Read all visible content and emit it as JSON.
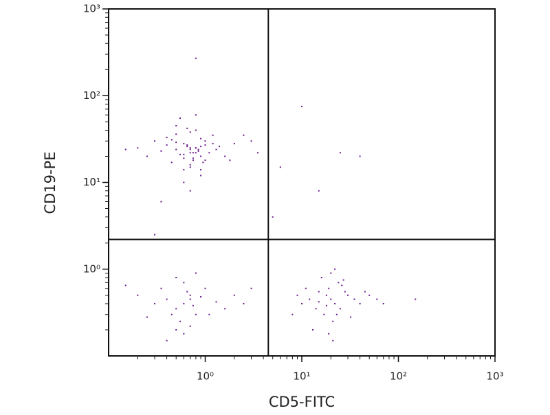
{
  "chart_data": {
    "type": "scatter",
    "x_label": "CD5-FITC",
    "y_label": "CD19-PE",
    "xscale": "log",
    "yscale": "log",
    "xlim": [
      0.1,
      1000
    ],
    "ylim": [
      0.1,
      1000
    ],
    "xticks": [
      {
        "value": 1,
        "label": "10⁰"
      },
      {
        "value": 10,
        "label": "10¹"
      },
      {
        "value": 100,
        "label": "10²"
      },
      {
        "value": 1000,
        "label": "10³"
      }
    ],
    "yticks": [
      {
        "value": 1,
        "label": "10⁰"
      },
      {
        "value": 10,
        "label": "10¹"
      },
      {
        "value": 100,
        "label": "10²"
      },
      {
        "value": 1000,
        "label": "10³"
      }
    ],
    "minor_xticks": [
      0.2,
      0.3,
      0.4,
      0.5,
      0.6,
      0.7,
      0.8,
      0.9,
      2,
      3,
      4,
      5,
      6,
      7,
      8,
      9,
      20,
      30,
      40,
      50,
      60,
      70,
      80,
      90,
      200,
      300,
      400,
      500,
      600,
      700,
      800,
      900
    ],
    "minor_yticks": [
      0.2,
      0.3,
      0.4,
      0.5,
      0.6,
      0.7,
      0.8,
      0.9,
      2,
      3,
      4,
      5,
      6,
      7,
      8,
      9,
      20,
      30,
      40,
      50,
      60,
      70,
      80,
      90,
      200,
      300,
      400,
      500,
      600,
      700,
      800,
      900
    ],
    "quadrant_gates": {
      "x": 4.5,
      "y": 2.2
    },
    "color": "#6b1a8f",
    "x": [
      0.7,
      0.8,
      0.6,
      0.9,
      0.5,
      1.0,
      0.75,
      0.65,
      0.85,
      0.55,
      1.2,
      0.4,
      0.7,
      0.9,
      0.6,
      0.8,
      1.1,
      0.5,
      0.7,
      0.95,
      0.35,
      1.4,
      0.6,
      0.8,
      0.7,
      0.45,
      1.6,
      0.9,
      0.65,
      0.75,
      0.3,
      2.0,
      0.5,
      1.0,
      0.8,
      0.6,
      0.7,
      1.3,
      0.4,
      0.9,
      0.25,
      2.5,
      0.55,
      0.85,
      0.7,
      1.8,
      0.2,
      3.0,
      0.6,
      0.75,
      0.15,
      0.8,
      1.0,
      0.5,
      3.5,
      0.7,
      0.9,
      0.65,
      1.2,
      0.45,
      0.6,
      0.5,
      0.7,
      0.4,
      0.8,
      0.65,
      0.3,
      1.0,
      0.55,
      0.75,
      0.2,
      1.3,
      0.6,
      0.45,
      0.9,
      0.35,
      0.7,
      1.6,
      0.5,
      0.25,
      2.0,
      0.8,
      0.6,
      0.15,
      2.5,
      0.4,
      1.1,
      0.7,
      3.0,
      0.5,
      20,
      18,
      22,
      15,
      25,
      12,
      30,
      19,
      17,
      24,
      10,
      35,
      21,
      16,
      28,
      14,
      40,
      20,
      9,
      23,
      26,
      13,
      50,
      18,
      22,
      11,
      32,
      60,
      19,
      15,
      27,
      8,
      45,
      21,
      70,
      0.8,
      10,
      25,
      0.3,
      6,
      40,
      0.35,
      5,
      15,
      150
    ],
    "y": [
      25,
      22,
      28,
      20,
      24,
      30,
      18,
      26,
      23,
      21,
      35,
      27,
      15,
      32,
      19,
      25,
      22,
      29,
      38,
      17,
      23,
      26,
      14,
      40,
      24,
      31,
      20,
      12,
      27,
      22,
      30,
      28,
      45,
      18,
      25,
      21,
      16,
      24,
      33,
      26,
      20,
      35,
      55,
      24,
      22,
      18,
      25,
      30,
      10,
      19,
      24,
      60,
      27,
      36,
      22,
      8,
      14,
      42,
      28,
      17,
      0.4,
      0.35,
      0.5,
      0.45,
      0.3,
      0.55,
      0.4,
      0.6,
      0.25,
      0.38,
      0.5,
      0.42,
      0.7,
      0.3,
      0.48,
      0.6,
      0.22,
      0.35,
      0.8,
      0.28,
      0.5,
      0.9,
      0.18,
      0.65,
      0.4,
      0.15,
      0.3,
      0.45,
      0.6,
      0.2,
      0.45,
      0.5,
      0.4,
      0.55,
      0.35,
      0.45,
      0.5,
      0.6,
      0.3,
      0.7,
      0.4,
      0.45,
      0.25,
      0.8,
      0.55,
      0.35,
      0.4,
      0.9,
      0.5,
      0.3,
      0.65,
      0.2,
      0.5,
      0.38,
      1.0,
      0.6,
      0.28,
      0.45,
      0.18,
      0.42,
      0.75,
      0.3,
      0.55,
      0.15,
      0.4,
      270,
      75,
      22,
      2.5,
      15,
      20,
      6,
      4,
      8,
      0.45
    ]
  }
}
